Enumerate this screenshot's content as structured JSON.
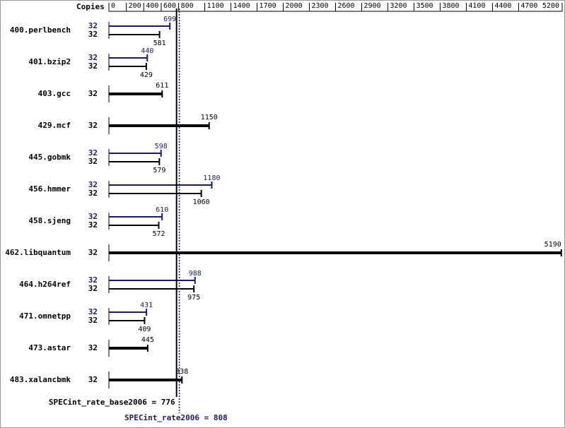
{
  "chart_data": {
    "type": "bar",
    "orientation": "horizontal",
    "copies_header": "Copies",
    "categories": [
      "400.perlbench",
      "401.bzip2",
      "403.gcc",
      "429.mcf",
      "445.gobmk",
      "456.hmmer",
      "458.sjeng",
      "462.libquantum",
      "464.h264ref",
      "471.omnetpp",
      "473.astar",
      "483.xalancbmk"
    ],
    "series": [
      {
        "color": "#000000",
        "copies": [
          32,
          32,
          32,
          32,
          32,
          32,
          32,
          32,
          32,
          32,
          32,
          32
        ],
        "values": [
          581,
          429,
          611,
          1150,
          579,
          1060,
          572,
          5190,
          975,
          409,
          445,
          838
        ]
      },
      {
        "color": "#191970",
        "copies": [
          32,
          32,
          null,
          null,
          32,
          32,
          32,
          null,
          32,
          32,
          null,
          null
        ],
        "values": [
          699,
          440,
          null,
          null,
          598,
          1180,
          610,
          null,
          988,
          431,
          null,
          null
        ]
      }
    ],
    "xlim": [
      0,
      5200
    ],
    "xticks": [
      0,
      200,
      400,
      600,
      800,
      1100,
      1400,
      1700,
      2000,
      2300,
      2600,
      2900,
      3200,
      3500,
      3800,
      4100,
      4400,
      4700,
      5200
    ],
    "reference_lines": [
      {
        "label": "SPECint_rate_base2006 = 776",
        "value": 776,
        "color": "#000000",
        "style": "solid"
      },
      {
        "label": "SPECint_rate2006 = 808",
        "value": 808,
        "color": "#191970",
        "style": "dotted"
      }
    ]
  }
}
